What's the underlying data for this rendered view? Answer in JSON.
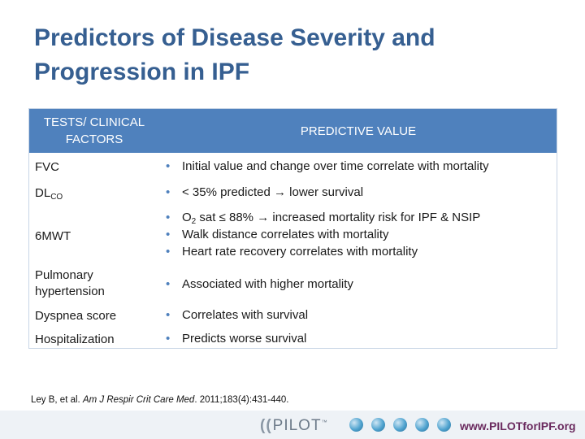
{
  "title": {
    "line1": "Predictors of Disease Severity and",
    "line2": "Progression in IPF"
  },
  "table": {
    "header_left_line1": "TESTS/ CLINICAL",
    "header_left_line2": "FACTORS",
    "header_right": "PREDICTIVE VALUE",
    "rows": [
      {
        "label": "FVC",
        "bullets": [
          "Initial value and change over time correlate with mortality"
        ]
      },
      {
        "label_main": "DL",
        "label_sub": "CO",
        "bullets": [
          "< 35% predicted",
          "lower survival"
        ]
      },
      {
        "label": "6MWT",
        "bullets": [
          {
            "pre": "O",
            "sub": "2",
            "mid": " sat ≤ 88%",
            "post": "increased mortality risk for IPF & NSIP"
          },
          "Walk distance correlates with mortality",
          "Heart rate recovery correlates with mortality"
        ]
      },
      {
        "label_line1": "Pulmonary",
        "label_line2": "hypertension",
        "bullets": [
          "Associated with higher mortality"
        ]
      },
      {
        "label": "Dyspnea score",
        "bullets": [
          "Correlates with survival"
        ]
      },
      {
        "label": "Hospitalization",
        "bullets": [
          "Predicts worse survival"
        ]
      }
    ],
    "bullet_glyph": "•",
    "arrow_glyph": "→"
  },
  "citation": {
    "authors": "Ley B, et al.",
    "journal": "Am J Respir Crit Care Med",
    "details": ". 2011;183(4):431-440."
  },
  "footer": {
    "logo_text": "PILOT",
    "logo_mark": "((",
    "logo_tm": "™",
    "url": "www.PILOTforIPF.org"
  },
  "colors": {
    "title": "#365f91",
    "header_fill": "#4f81bd",
    "url": "#6a2a5e"
  }
}
